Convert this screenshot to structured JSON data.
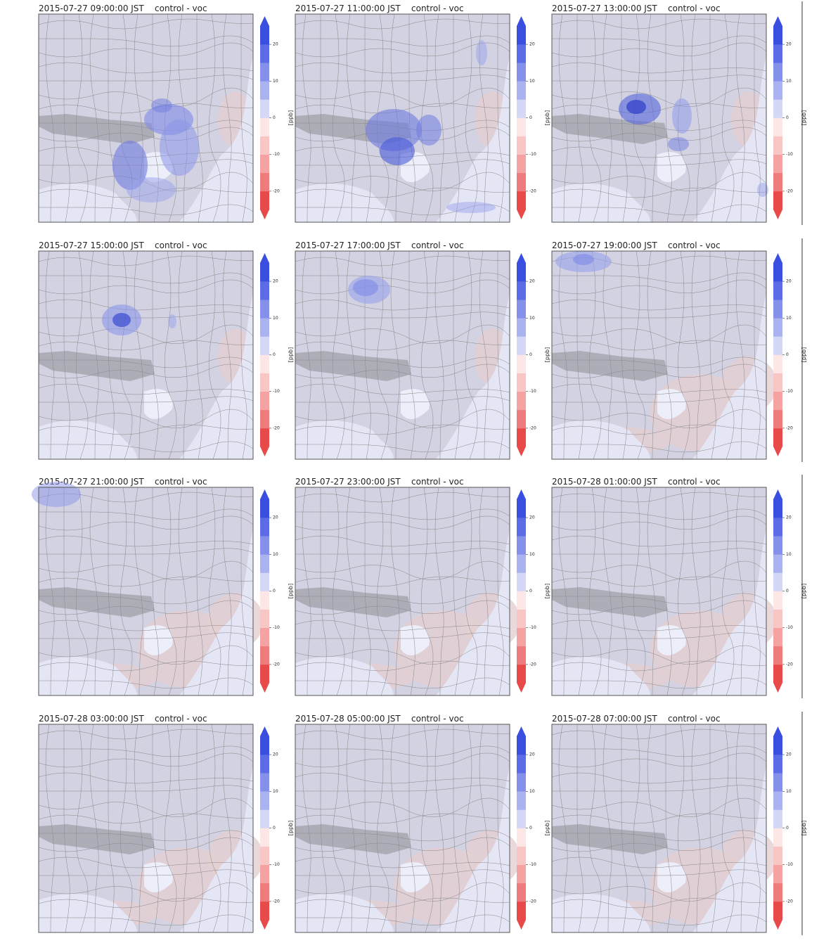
{
  "panels": [
    {
      "time": "2015-07-27 09:00:00 JST",
      "run": "control - voc"
    },
    {
      "time": "2015-07-27 11:00:00 JST",
      "run": "control - voc"
    },
    {
      "time": "2015-07-27 13:00:00 JST",
      "run": "control - voc"
    },
    {
      "time": "2015-07-27 15:00:00 JST",
      "run": "control - voc"
    },
    {
      "time": "2015-07-27 17:00:00 JST",
      "run": "control - voc"
    },
    {
      "time": "2015-07-27 19:00:00 JST",
      "run": "control - voc"
    },
    {
      "time": "2015-07-27 21:00:00 JST",
      "run": "control - voc"
    },
    {
      "time": "2015-07-27 23:00:00 JST",
      "run": "control - voc"
    },
    {
      "time": "2015-07-28 01:00:00 JST",
      "run": "control - voc"
    },
    {
      "time": "2015-07-28 03:00:00 JST",
      "run": "control - voc"
    },
    {
      "time": "2015-07-28 05:00:00 JST",
      "run": "control - voc"
    },
    {
      "time": "2015-07-28 07:00:00 JST",
      "run": "control - voc"
    }
  ],
  "colorbar": {
    "label": "[ppb]",
    "lim": [
      -25,
      25
    ],
    "ticks": [
      -20,
      -10,
      0,
      10,
      20
    ],
    "colors": [
      "#e84a4a",
      "#ef7c7c",
      "#f4a2a2",
      "#f9c6c6",
      "#fde6e6",
      "#d4d8f6",
      "#aab2ef",
      "#8490ea",
      "#5b6ce6",
      "#3a4ee0"
    ]
  }
}
